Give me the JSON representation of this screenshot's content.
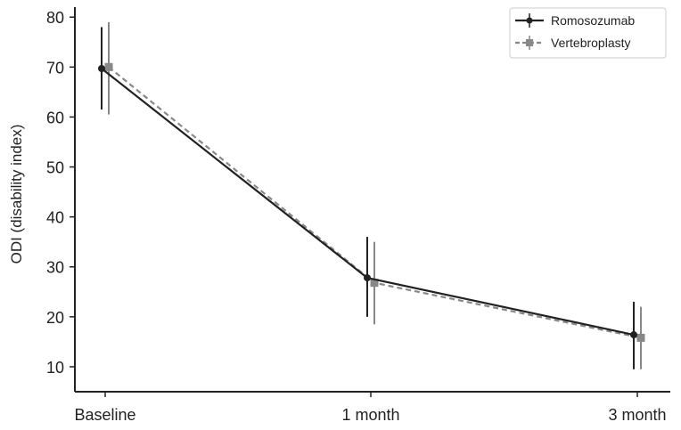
{
  "chart_data": {
    "type": "line",
    "categories": [
      "Baseline",
      "1 month",
      "3 month"
    ],
    "ylabel": "ODI (disability index)",
    "xlabel": "",
    "ylim": [
      5,
      82
    ],
    "yticks": [
      10,
      20,
      30,
      40,
      50,
      60,
      70,
      80
    ],
    "grid": false,
    "legend_position": "top-right",
    "series": [
      {
        "name": "Romosozumab",
        "values": [
          69.7,
          27.8,
          16.4
        ],
        "err_low": [
          61.5,
          20.0,
          9.5
        ],
        "err_high": [
          78.0,
          36.0,
          23.0
        ],
        "color": "#222222",
        "linestyle": "solid",
        "marker": "circle"
      },
      {
        "name": "Vertebroplasty",
        "values": [
          70.0,
          26.8,
          15.8
        ],
        "err_low": [
          60.5,
          18.5,
          9.5
        ],
        "err_high": [
          79.0,
          35.0,
          22.0
        ],
        "color": "#888888",
        "linestyle": "dashed",
        "marker": "square"
      }
    ]
  }
}
